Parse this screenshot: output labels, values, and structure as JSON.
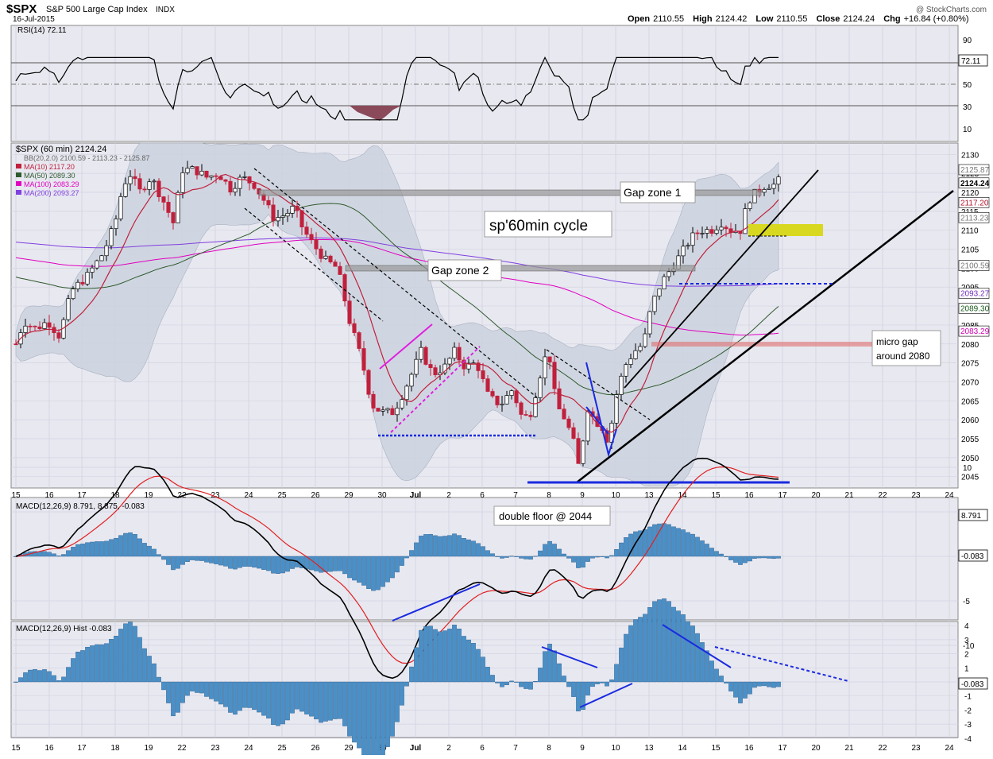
{
  "header": {
    "symbol": "$SPX",
    "name": "S&P 500 Large Cap Index",
    "exchange": "INDX",
    "date": "16-Jul-2015",
    "copyright": "@ StockCharts.com",
    "open_label": "Open",
    "open": "2110.55",
    "high_label": "High",
    "high": "2124.42",
    "low_label": "Low",
    "low": "2110.55",
    "close_label": "Close",
    "close": "2124.24",
    "chg_label": "Chg",
    "chg": "+16.84 (+0.80%)"
  },
  "rsi_panel": {
    "legend": "RSI(14) 72.11",
    "current": "72.11",
    "ticks": [
      "90",
      "70",
      "50",
      "30",
      "10"
    ]
  },
  "price_panel": {
    "legend_main": "$SPX (60 min) 2124.24",
    "legend_bb": "BB(20,2.0) 2100.59 - 2113.23 - 2125.87",
    "legend_ma10": "MA(10) 2117.20",
    "legend_ma50": "MA(50) 2089.30",
    "legend_ma100": "MA(100) 2083.29",
    "legend_ma200": "MA(200) 2093.27",
    "ticks": [
      "2130",
      "2125",
      "2120",
      "2115",
      "2110",
      "2105",
      "2100",
      "2095",
      "2090",
      "2085",
      "2080",
      "2075",
      "2070",
      "2065",
      "2060",
      "2055",
      "2050",
      "2045"
    ],
    "markers": [
      {
        "text": "2125.87",
        "value": 2125.87,
        "bg": "#ffffff",
        "fg": "#777777"
      },
      {
        "text": "2124.24",
        "value": 2124.24,
        "bg": "#ffffff",
        "fg": "#000000",
        "bold": true
      },
      {
        "text": "2117.20",
        "value": 2117.2,
        "bg": "#ffffff",
        "fg": "#b0102a"
      },
      {
        "text": "2113.23",
        "value": 2113.23,
        "bg": "#ffffff",
        "fg": "#777777"
      },
      {
        "text": "2100.59",
        "value": 2100.59,
        "bg": "#ffffff",
        "fg": "#777777"
      },
      {
        "text": "2093.27",
        "value": 2093.27,
        "bg": "#ffffff",
        "fg": "#7030c0"
      },
      {
        "text": "2089.30",
        "value": 2089.3,
        "bg": "#ffffff",
        "fg": "#1a5a1a"
      },
      {
        "text": "2083.29",
        "value": 2083.29,
        "bg": "#ffffff",
        "fg": "#d000b0"
      }
    ],
    "annotations": {
      "gap1": "Gap zone 1",
      "gap2": "Gap zone 2",
      "cycle": "sp'60min cycle",
      "micro1": "micro gap",
      "micro2": "around 2080"
    }
  },
  "macd_panel": {
    "legend": "MACD(12,26,9) 8.791, 8.875, -0.083",
    "macd": "8.791",
    "signal": "8.875",
    "hist": "-0.083",
    "note": "double floor @ 2044",
    "ticks": [
      "10",
      "5",
      "0",
      "-5",
      "-10"
    ]
  },
  "hist_panel": {
    "legend": "MACD(12,26,9) Hist -0.083",
    "current": "-0.083",
    "ticks": [
      "4",
      "3",
      "2",
      "1",
      "0",
      "-1",
      "-2",
      "-3",
      "-4"
    ]
  },
  "x_axis": {
    "labels": [
      "15",
      "16",
      "17",
      "18",
      "19",
      "22",
      "23",
      "24",
      "25",
      "26",
      "29",
      "30",
      "Jul",
      "2",
      "6",
      "7",
      "8",
      "9",
      "10",
      "13",
      "14",
      "15",
      "16",
      "17",
      "20",
      "21",
      "22",
      "23",
      "24"
    ]
  },
  "colors": {
    "panel_bg": "#e8e8f0",
    "bull": "#ffffff",
    "bear": "#c0203c",
    "bb_fill": "#c8d0dc",
    "ma10": "#c0203c",
    "ma50": "#2e5a2e",
    "ma100": "#e000c0",
    "ma200": "#8040e0",
    "hist": "#4a90c8",
    "rsi_fill": "#8a4a5a"
  },
  "chart_data": {
    "type": "line",
    "title": "$SPX S&P 500 Large Cap Index (60 min)",
    "x": [
      "15",
      "16",
      "17",
      "18",
      "19",
      "22",
      "23",
      "24",
      "25",
      "26",
      "29",
      "30",
      "Jul",
      "2",
      "6",
      "7",
      "8",
      "9",
      "10",
      "13",
      "14",
      "15",
      "16"
    ],
    "ylim": [
      2042,
      2133
    ],
    "series": [
      {
        "name": "$SPX (60 min)",
        "values": [
          2080,
          2088,
          2100,
          2122,
          2124,
          2124,
          2122,
          2120,
          2112,
          2104,
          2087,
          2062,
          2072,
          2074,
          2070,
          2058,
          2068,
          2046,
          2060,
          2088,
          2104,
          2110,
          2124.24
        ]
      },
      {
        "name": "MA(10)",
        "values": [
          2080,
          2084,
          2096,
          2116,
          2122,
          2124,
          2121,
          2120,
          2114,
          2106,
          2092,
          2066,
          2068,
          2072,
          2070,
          2062,
          2066,
          2056,
          2062,
          2080,
          2100,
          2108,
          2117.2
        ]
      },
      {
        "name": "MA(50)",
        "values": [
          2095,
          2092,
          2093,
          2098,
          2104,
          2106,
          2110,
          2112,
          2114,
          2115,
          2112,
          2104,
          2096,
          2088,
          2082,
          2076,
          2072,
          2066,
          2064,
          2064,
          2068,
          2078,
          2089.3
        ]
      },
      {
        "name": "MA(100)",
        "values": [
          2102,
          2101,
          2101,
          2102,
          2102,
          2102,
          2103,
          2104,
          2105,
          2104,
          2103,
          2102,
          2101,
          2100,
          2098,
          2096,
          2094,
          2092,
          2090,
          2087,
          2085,
          2083,
          2083.29
        ]
      },
      {
        "name": "MA(200)",
        "values": [
          2107,
          2107,
          2107,
          2108,
          2108,
          2109,
          2109,
          2109,
          2108,
          2107,
          2106,
          2105,
          2104,
          2102,
          2101,
          2099,
          2097,
          2095,
          2094,
          2093,
          2093,
          2093,
          2093.27
        ]
      }
    ]
  }
}
